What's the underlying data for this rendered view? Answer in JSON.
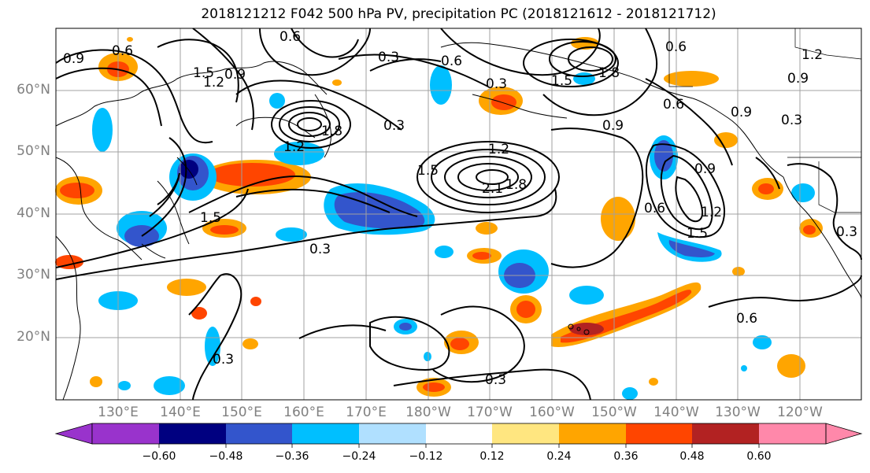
{
  "title": "2018121212 F042 500 hPa PV, precipitation PC (2018121612 - 2018121712)",
  "colors": {
    "land_outline": "#000000",
    "gridline": "#a0a0a0",
    "contour": "#000000",
    "tick_label": "#808080"
  },
  "map": {
    "lat_ticks": [
      "60°N",
      "50°N",
      "40°N",
      "30°N",
      "20°N"
    ],
    "lon_ticks": [
      "130°E",
      "140°E",
      "150°E",
      "160°E",
      "170°E",
      "180°W",
      "170°W",
      "160°W",
      "150°W",
      "140°W",
      "130°W",
      "120°W"
    ],
    "contour_labels": [
      "0.9",
      "0.6",
      "1.5",
      "1.2",
      "0.9",
      "0.6",
      "0.3",
      "0.6",
      "0.3",
      "1.5",
      "1.8",
      "0.6",
      "0.9",
      "0.3",
      "1.8",
      "1.2",
      "1.5",
      "1.2",
      "2.1",
      "1.8",
      "0.6",
      "0.9",
      "1.2",
      "1.5",
      "0.9",
      "0.3",
      "0.3",
      "1.5",
      "0.6",
      "0.3",
      "0.3",
      "0.3",
      "0.6",
      "0.9",
      "1.2"
    ]
  },
  "colorbar": {
    "ticks": [
      "−0.60",
      "−0.48",
      "−0.36",
      "−0.24",
      "−0.12",
      "0.12",
      "0.24",
      "0.36",
      "0.48",
      "0.60"
    ],
    "colors": [
      "#9933cc",
      "#000080",
      "#3355cc",
      "#00bfff",
      "#b0e0ff",
      "#ffffff",
      "#ffe680",
      "#ffa500",
      "#ff4500",
      "#b22222",
      "#ff88aa"
    ]
  }
}
